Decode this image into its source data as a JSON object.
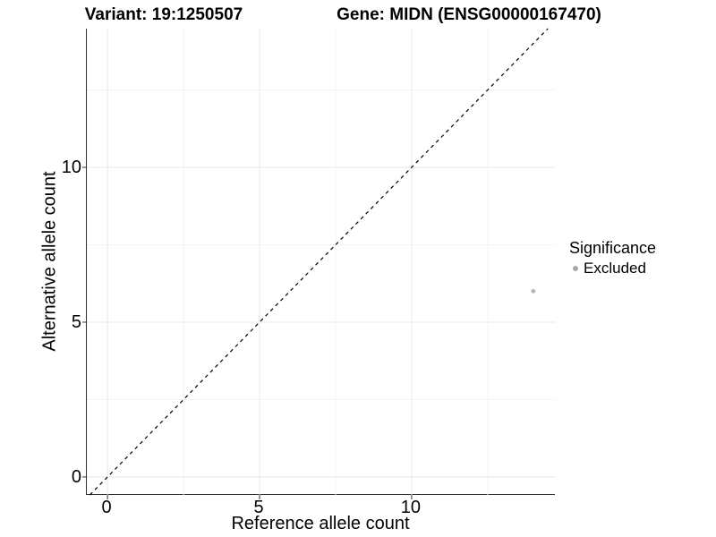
{
  "header": {
    "variant_title": "Variant: 19:1250507",
    "gene_title": "Gene: MIDN (ENSG00000167470)"
  },
  "axes": {
    "x": {
      "label": "Reference allele count",
      "tick_labels": [
        "0",
        "5",
        "10"
      ]
    },
    "y": {
      "label": "Alternative allele count",
      "tick_labels": [
        "0",
        "5",
        "10"
      ]
    }
  },
  "legend": {
    "title": "Significance",
    "items": [
      {
        "label": "Excluded",
        "color": "#a8a8a8"
      }
    ]
  },
  "colors": {
    "point": "#b5b5b5",
    "identity_line": "#000000",
    "grid_major": "#e8e8e8",
    "grid_minor": "#f4f4f4",
    "axis_line": "#2f2f2f",
    "tick_mark": "#333333"
  },
  "chart_data": {
    "type": "scatter",
    "title": "Variant: 19:1250507  /  Gene: MIDN (ENSG00000167470)",
    "xlabel": "Reference allele count",
    "ylabel": "Alternative allele count",
    "xlim": [
      -0.68,
      14.74
    ],
    "ylim": [
      -0.58,
      14.48
    ],
    "x_major_ticks": [
      0,
      5,
      10
    ],
    "y_major_ticks": [
      0,
      5,
      10
    ],
    "x_minor_ticks": [
      2.5,
      7.5,
      12.5
    ],
    "y_minor_ticks": [
      2.5,
      7.5,
      12.5
    ],
    "grid": true,
    "legend_position": "right",
    "series": [
      {
        "name": "Excluded",
        "points": [
          {
            "x": 14,
            "y": 6
          }
        ]
      }
    ],
    "reference_line": {
      "type": "identity-y-equals-x",
      "style": "dashed"
    }
  }
}
